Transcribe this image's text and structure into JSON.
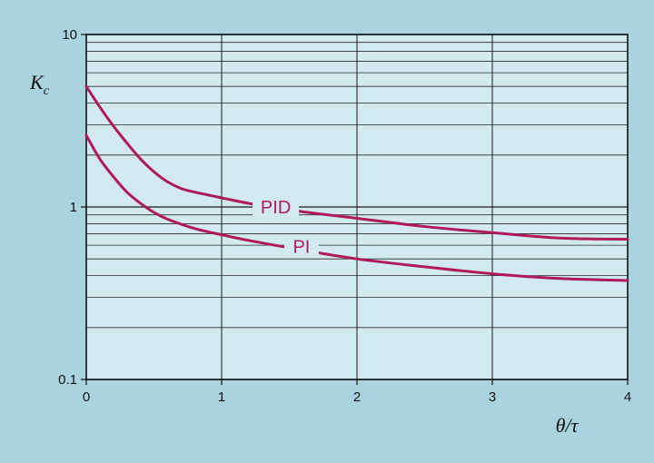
{
  "chart_data": {
    "type": "line",
    "title": "",
    "xlabel": "θ/τ",
    "ylabel": "K",
    "ylabel_subscript": "c",
    "xlim": [
      0,
      4
    ],
    "ylim": [
      0.1,
      10
    ],
    "yscale": "log",
    "grid": true,
    "x_ticks": [
      0,
      1,
      2,
      3,
      4
    ],
    "x_tick_labels": [
      "0",
      "1",
      "2",
      "3",
      "4"
    ],
    "y_ticks": [
      0.1,
      1,
      10
    ],
    "y_tick_labels": [
      "0.1",
      "1",
      "10"
    ],
    "line_color": "#b0195a",
    "background_color": "#a9d4df",
    "plot_color": "#d2e9ef",
    "series": [
      {
        "name": "PID",
        "label_at": [
          1.4,
          1.0
        ],
        "x": [
          0,
          0.1,
          0.2,
          0.3,
          0.4,
          0.5,
          0.6,
          0.7,
          0.8,
          1.0,
          1.2,
          1.5,
          2.0,
          2.5,
          3.0,
          3.5,
          4.0
        ],
        "y": [
          5.0,
          3.8,
          2.95,
          2.35,
          1.9,
          1.6,
          1.4,
          1.28,
          1.22,
          1.13,
          1.05,
          0.96,
          0.86,
          0.77,
          0.71,
          0.66,
          0.65
        ]
      },
      {
        "name": "PI",
        "label_at": [
          1.59,
          0.59
        ],
        "x": [
          0,
          0.1,
          0.2,
          0.3,
          0.4,
          0.5,
          0.6,
          0.8,
          1.0,
          1.2,
          1.5,
          2.0,
          2.5,
          3.0,
          3.5,
          4.0
        ],
        "y": [
          2.6,
          1.9,
          1.5,
          1.22,
          1.05,
          0.93,
          0.85,
          0.75,
          0.69,
          0.64,
          0.58,
          0.5,
          0.45,
          0.41,
          0.385,
          0.375
        ]
      }
    ]
  }
}
